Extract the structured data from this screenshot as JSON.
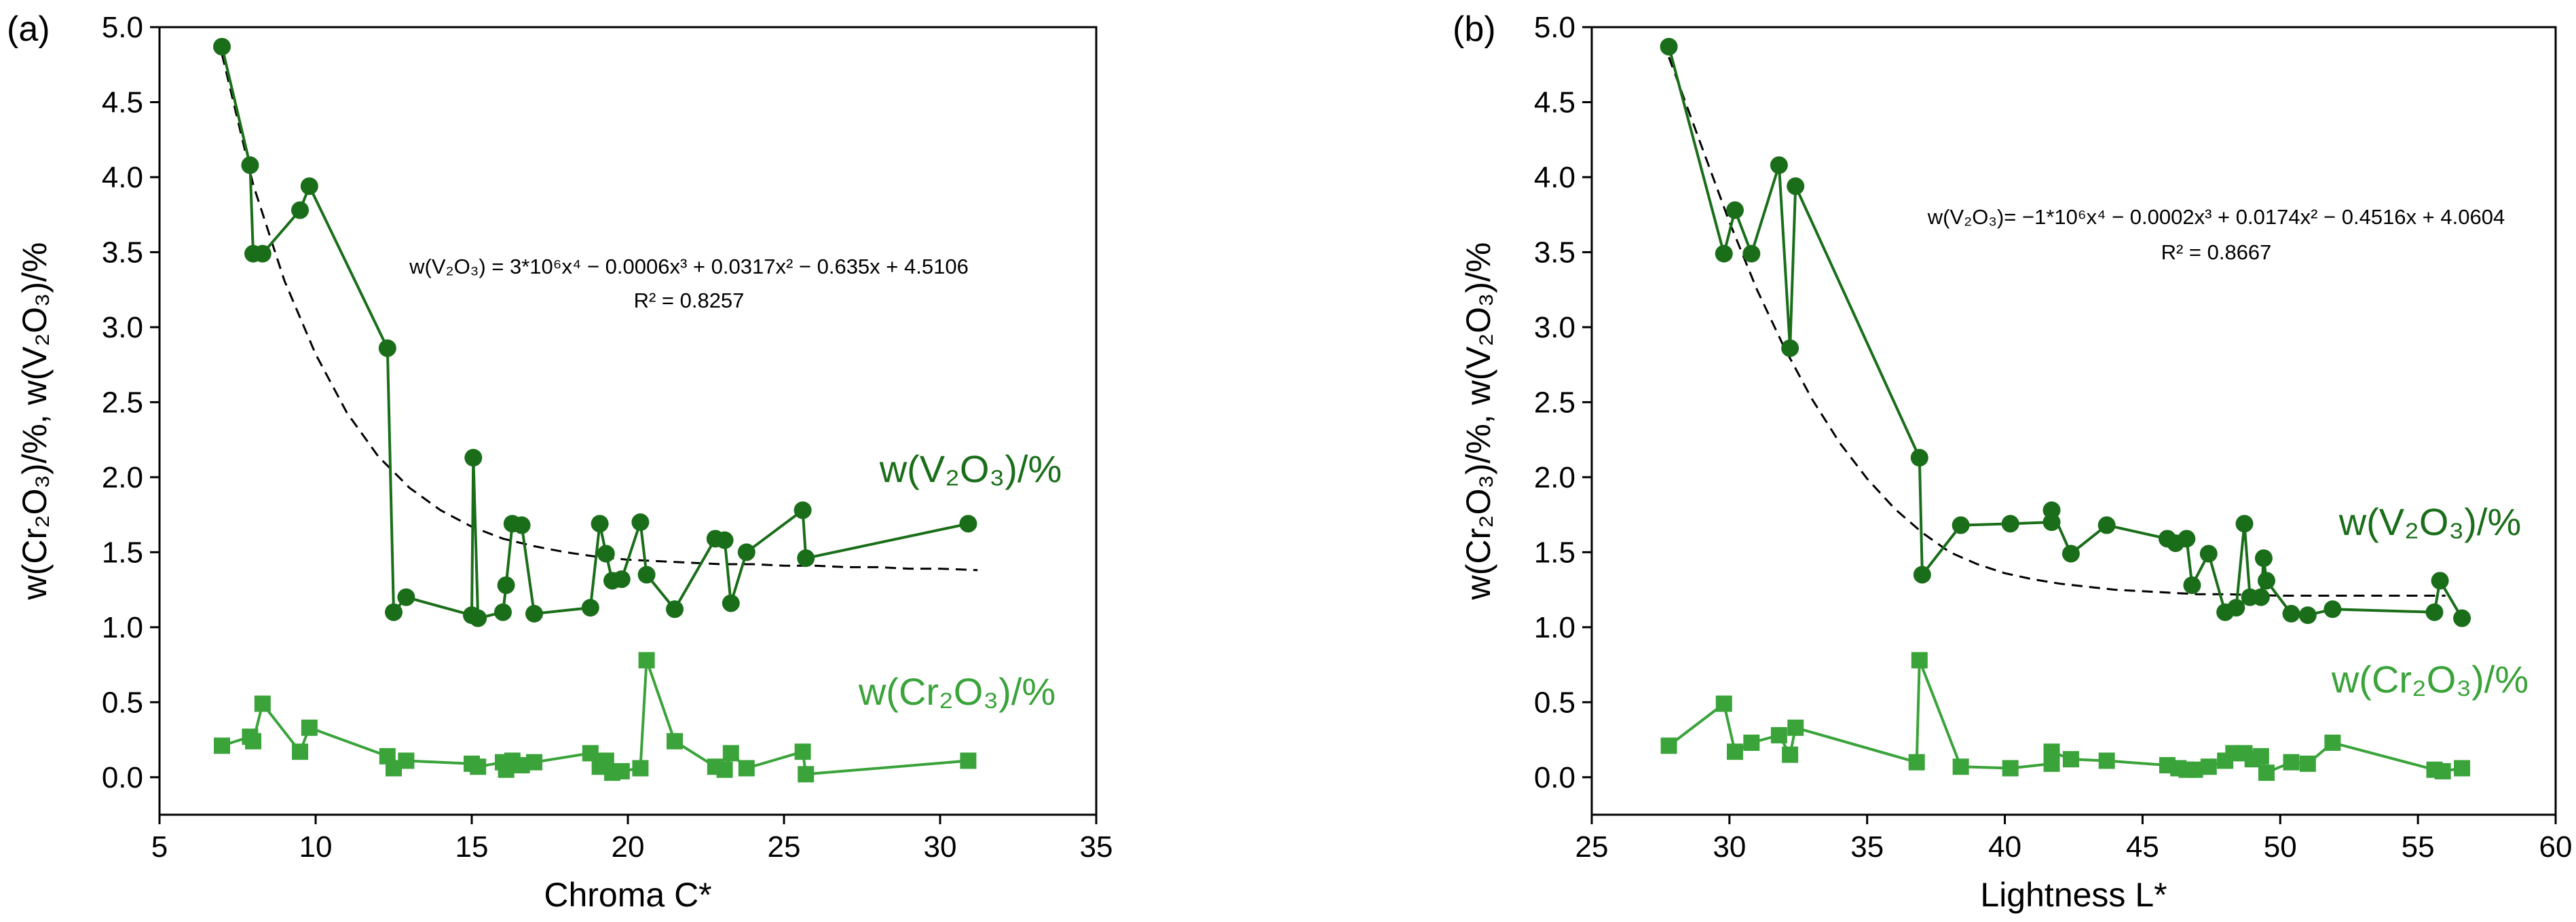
{
  "chart_data": [
    {
      "type": "line",
      "panel_label": "(a)",
      "xlabel": "Chroma C*",
      "ylabel": "w(Cr₂O₃)/%,  w(V₂O₃)/%",
      "xlim": [
        5,
        35
      ],
      "ylim": [
        -0.25,
        5.0
      ],
      "xticks": [
        "5",
        "10",
        "15",
        "20",
        "25",
        "30",
        "35"
      ],
      "yticks": [
        "0.0",
        "0.5",
        "1.0",
        "1.5",
        "2.0",
        "2.5",
        "3.0",
        "3.5",
        "4.0",
        "4.5",
        "5.0"
      ],
      "series": [
        {
          "name": "w(V2O3)/%",
          "label": "w(V₂O₃)/%",
          "color": "#1a6e1a",
          "marker": "circle",
          "points": [
            [
              7.0,
              4.87
            ],
            [
              7.9,
              4.08
            ],
            [
              8.0,
              3.49
            ],
            [
              8.3,
              3.49
            ],
            [
              9.5,
              3.78
            ],
            [
              9.8,
              3.94
            ],
            [
              12.3,
              2.86
            ],
            [
              12.5,
              1.1
            ],
            [
              12.9,
              1.2
            ],
            [
              15.0,
              1.08
            ],
            [
              15.05,
              2.13
            ],
            [
              15.2,
              1.06
            ],
            [
              16.0,
              1.1
            ],
            [
              16.1,
              1.28
            ],
            [
              16.3,
              1.69
            ],
            [
              16.6,
              1.68
            ],
            [
              17.0,
              1.09
            ],
            [
              18.8,
              1.13
            ],
            [
              19.1,
              1.69
            ],
            [
              19.3,
              1.49
            ],
            [
              19.5,
              1.31
            ],
            [
              19.8,
              1.32
            ],
            [
              20.4,
              1.7
            ],
            [
              20.6,
              1.35
            ],
            [
              21.5,
              1.12
            ],
            [
              22.8,
              1.59
            ],
            [
              23.1,
              1.58
            ],
            [
              23.3,
              1.16
            ],
            [
              23.8,
              1.5
            ],
            [
              25.6,
              1.78
            ],
            [
              25.7,
              1.46
            ],
            [
              30.9,
              1.69
            ]
          ]
        },
        {
          "name": "w(Cr2O3)/%",
          "label": "w(Cr₂O₃)/%",
          "color": "#3aa33a",
          "marker": "square",
          "points": [
            [
              7.0,
              0.21
            ],
            [
              7.9,
              0.27
            ],
            [
              8.0,
              0.24
            ],
            [
              8.3,
              0.49
            ],
            [
              9.5,
              0.17
            ],
            [
              9.8,
              0.33
            ],
            [
              12.3,
              0.14
            ],
            [
              12.5,
              0.06
            ],
            [
              12.9,
              0.11
            ],
            [
              15.0,
              0.09
            ],
            [
              15.2,
              0.07
            ],
            [
              16.0,
              0.1
            ],
            [
              16.1,
              0.05
            ],
            [
              16.3,
              0.11
            ],
            [
              16.6,
              0.08
            ],
            [
              17.0,
              0.1
            ],
            [
              18.8,
              0.16
            ],
            [
              19.1,
              0.07
            ],
            [
              19.3,
              0.11
            ],
            [
              19.5,
              0.03
            ],
            [
              19.8,
              0.04
            ],
            [
              20.4,
              0.06
            ],
            [
              20.6,
              0.78
            ],
            [
              21.5,
              0.24
            ],
            [
              22.8,
              0.07
            ],
            [
              23.1,
              0.05
            ],
            [
              23.3,
              0.16
            ],
            [
              23.8,
              0.06
            ],
            [
              25.6,
              0.17
            ],
            [
              25.7,
              0.02
            ],
            [
              30.9,
              0.11
            ]
          ]
        }
      ],
      "fit": {
        "style": "dashed",
        "points": [
          [
            7.0,
            4.82
          ],
          [
            8,
            3.95
          ],
          [
            9,
            3.31
          ],
          [
            10,
            2.82
          ],
          [
            11,
            2.43
          ],
          [
            12,
            2.14
          ],
          [
            13,
            1.93
          ],
          [
            14,
            1.78
          ],
          [
            15,
            1.67
          ],
          [
            16,
            1.59
          ],
          [
            17,
            1.54
          ],
          [
            18,
            1.5
          ],
          [
            19,
            1.47
          ],
          [
            20,
            1.45
          ],
          [
            21,
            1.44
          ],
          [
            22,
            1.43
          ],
          [
            23,
            1.42
          ],
          [
            24,
            1.42
          ],
          [
            25,
            1.41
          ],
          [
            26,
            1.41
          ],
          [
            27,
            1.4
          ],
          [
            28,
            1.4
          ],
          [
            29,
            1.39
          ],
          [
            30,
            1.39
          ],
          [
            31.2,
            1.38
          ]
        ]
      },
      "equation_lines": [
        "w(V₂O₃) = 3*10⁶x⁴ − 0.0006x³ + 0.0317x² − 0.635x + 4.5106",
        "R² = 0.8257"
      ]
    },
    {
      "type": "line",
      "panel_label": "(b)",
      "xlabel": "Lightness L*",
      "ylabel": "w(Cr₂O₃)/%,  w(V₂O₃)/%",
      "xlim": [
        25,
        60
      ],
      "ylim": [
        -0.25,
        5.0
      ],
      "xticks": [
        "25",
        "30",
        "35",
        "40",
        "45",
        "50",
        "55",
        "60"
      ],
      "yticks": [
        "0.0",
        "0.5",
        "1.0",
        "1.5",
        "2.0",
        "2.5",
        "3.0",
        "3.5",
        "4.0",
        "4.5",
        "5.0"
      ],
      "series": [
        {
          "name": "w(V2O3)/%",
          "label": "w(V₂O₃)/%",
          "color": "#1a6e1a",
          "marker": "circle",
          "points": [
            [
              27.8,
              4.87
            ],
            [
              29.8,
              3.49
            ],
            [
              30.2,
              3.78
            ],
            [
              30.8,
              3.49
            ],
            [
              31.8,
              4.08
            ],
            [
              32.2,
              2.86
            ],
            [
              32.4,
              3.94
            ],
            [
              36.9,
              2.13
            ],
            [
              37.0,
              1.35
            ],
            [
              38.4,
              1.68
            ],
            [
              40.2,
              1.69
            ],
            [
              41.7,
              1.7
            ],
            [
              41.7,
              1.78
            ],
            [
              42.4,
              1.49
            ],
            [
              43.7,
              1.68
            ],
            [
              45.9,
              1.59
            ],
            [
              46.2,
              1.56
            ],
            [
              46.6,
              1.59
            ],
            [
              46.8,
              1.28
            ],
            [
              47.4,
              1.49
            ],
            [
              48.0,
              1.1
            ],
            [
              48.4,
              1.13
            ],
            [
              48.7,
              1.69
            ],
            [
              48.9,
              1.2
            ],
            [
              49.3,
              1.2
            ],
            [
              49.4,
              1.46
            ],
            [
              49.5,
              1.31
            ],
            [
              50.4,
              1.09
            ],
            [
              51.0,
              1.08
            ],
            [
              51.9,
              1.12
            ],
            [
              55.6,
              1.1
            ],
            [
              55.8,
              1.31
            ],
            [
              56.6,
              1.06
            ]
          ]
        },
        {
          "name": "w(Cr2O3)/%",
          "label": "w(Cr₂O₃)/%",
          "color": "#3aa33a",
          "marker": "square",
          "points": [
            [
              27.8,
              0.21
            ],
            [
              29.8,
              0.49
            ],
            [
              30.2,
              0.17
            ],
            [
              30.8,
              0.23
            ],
            [
              31.8,
              0.28
            ],
            [
              32.2,
              0.15
            ],
            [
              32.4,
              0.33
            ],
            [
              36.8,
              0.1
            ],
            [
              36.9,
              0.78
            ],
            [
              38.4,
              0.07
            ],
            [
              40.2,
              0.06
            ],
            [
              41.7,
              0.09
            ],
            [
              41.7,
              0.17
            ],
            [
              42.4,
              0.12
            ],
            [
              43.7,
              0.11
            ],
            [
              45.9,
              0.08
            ],
            [
              46.3,
              0.06
            ],
            [
              46.6,
              0.05
            ],
            [
              46.9,
              0.05
            ],
            [
              47.4,
              0.07
            ],
            [
              48.0,
              0.11
            ],
            [
              48.3,
              0.16
            ],
            [
              48.7,
              0.16
            ],
            [
              49.0,
              0.12
            ],
            [
              49.3,
              0.14
            ],
            [
              49.5,
              0.03
            ],
            [
              50.4,
              0.1
            ],
            [
              51.0,
              0.09
            ],
            [
              51.9,
              0.23
            ],
            [
              55.6,
              0.05
            ],
            [
              55.9,
              0.04
            ],
            [
              56.6,
              0.06
            ]
          ]
        }
      ],
      "fit": {
        "style": "dashed",
        "points": [
          [
            27.8,
            4.8
          ],
          [
            29,
            4.2
          ],
          [
            30,
            3.7
          ],
          [
            31,
            3.25
          ],
          [
            32,
            2.86
          ],
          [
            33,
            2.52
          ],
          [
            34,
            2.23
          ],
          [
            35,
            1.99
          ],
          [
            36,
            1.79
          ],
          [
            37,
            1.63
          ],
          [
            38,
            1.5
          ],
          [
            39,
            1.42
          ],
          [
            40,
            1.36
          ],
          [
            41,
            1.32
          ],
          [
            42,
            1.29
          ],
          [
            43,
            1.27
          ],
          [
            44,
            1.25
          ],
          [
            45,
            1.24
          ],
          [
            46,
            1.23
          ],
          [
            47,
            1.22
          ],
          [
            48,
            1.22
          ],
          [
            50,
            1.21
          ],
          [
            52,
            1.21
          ],
          [
            54,
            1.21
          ],
          [
            56,
            1.21
          ]
        ]
      },
      "equation_lines": [
        "w(V₂O₃)= −1*10⁶x⁴ − 0.0002x³ + 0.0174x² − 0.4516x + 4.0604",
        "R² = 0.8667"
      ]
    }
  ]
}
